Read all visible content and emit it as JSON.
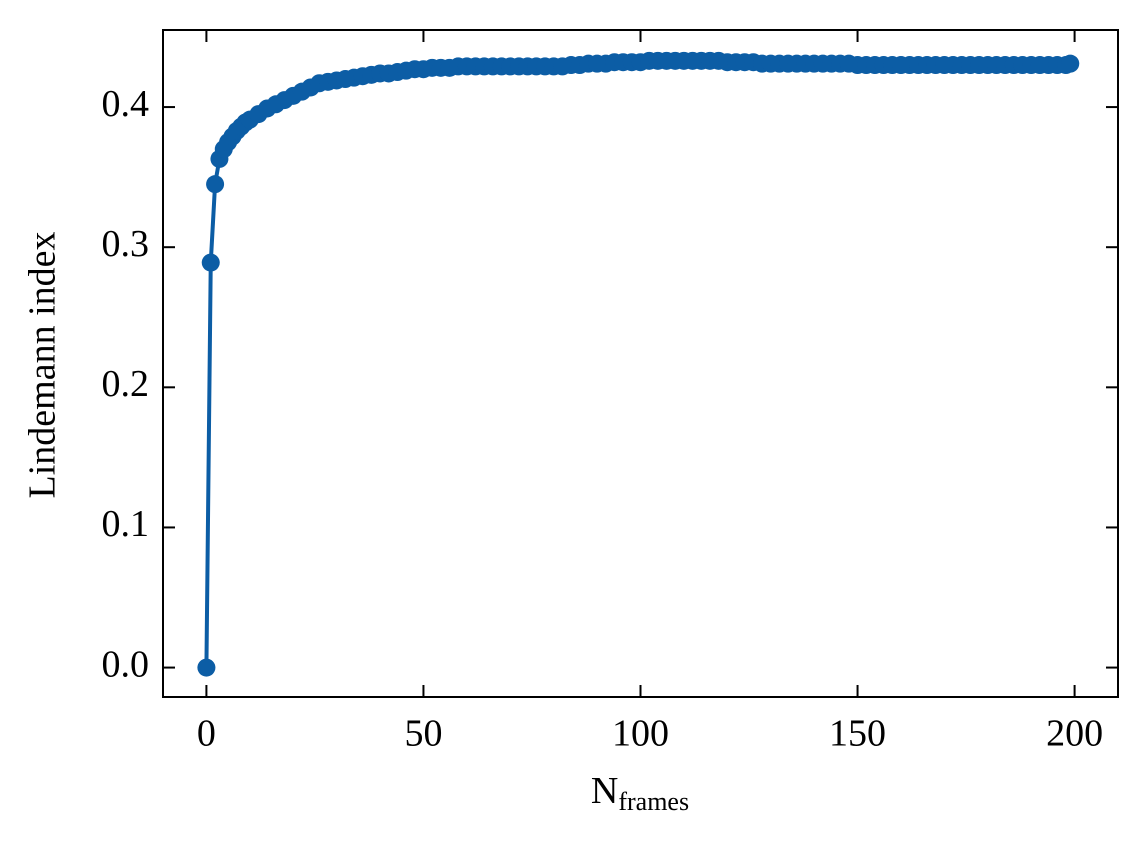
{
  "chart_data": {
    "type": "line",
    "xlabel": "N",
    "xlabel_sub": "frames",
    "ylabel": "Lindemann index",
    "x": [
      0,
      1,
      2,
      3,
      4,
      5,
      6,
      7,
      8,
      9,
      10,
      12,
      14,
      16,
      18,
      20,
      22,
      24,
      26,
      28,
      30,
      32,
      34,
      36,
      38,
      40,
      42,
      44,
      46,
      48,
      50,
      52,
      54,
      56,
      58,
      60,
      62,
      64,
      66,
      68,
      70,
      72,
      74,
      76,
      78,
      80,
      82,
      84,
      86,
      88,
      90,
      92,
      94,
      96,
      98,
      100,
      102,
      104,
      106,
      108,
      110,
      112,
      114,
      116,
      118,
      120,
      122,
      124,
      126,
      128,
      130,
      132,
      134,
      136,
      138,
      140,
      142,
      144,
      146,
      148,
      150,
      152,
      154,
      156,
      158,
      160,
      162,
      164,
      166,
      168,
      170,
      172,
      174,
      176,
      178,
      180,
      182,
      184,
      186,
      188,
      190,
      192,
      194,
      196,
      198,
      199
    ],
    "series": [
      {
        "color": "#0c5da5",
        "values": [
          0,
          0.289,
          0.345,
          0.363,
          0.37,
          0.375,
          0.379,
          0.383,
          0.386,
          0.389,
          0.391,
          0.395,
          0.399,
          0.402,
          0.405,
          0.408,
          0.411,
          0.414,
          0.417,
          0.418,
          0.419,
          0.42,
          0.421,
          0.422,
          0.423,
          0.424,
          0.424,
          0.425,
          0.426,
          0.427,
          0.427,
          0.428,
          0.428,
          0.428,
          0.429,
          0.429,
          0.429,
          0.429,
          0.429,
          0.429,
          0.429,
          0.429,
          0.429,
          0.429,
          0.429,
          0.429,
          0.429,
          0.43,
          0.43,
          0.431,
          0.431,
          0.431,
          0.432,
          0.432,
          0.432,
          0.432,
          0.433,
          0.433,
          0.433,
          0.433,
          0.433,
          0.433,
          0.433,
          0.433,
          0.433,
          0.432,
          0.432,
          0.432,
          0.432,
          0.431,
          0.431,
          0.431,
          0.431,
          0.431,
          0.431,
          0.431,
          0.431,
          0.431,
          0.431,
          0.431,
          0.43,
          0.43,
          0.43,
          0.43,
          0.43,
          0.43,
          0.43,
          0.43,
          0.43,
          0.43,
          0.43,
          0.43,
          0.43,
          0.43,
          0.43,
          0.43,
          0.43,
          0.43,
          0.43,
          0.43,
          0.43,
          0.43,
          0.43,
          0.43,
          0.43,
          0.431
        ]
      }
    ],
    "xlim": [
      -10,
      210
    ],
    "xticks": [
      0,
      50,
      100,
      150,
      200
    ],
    "ylim": [
      -0.021,
      0.455
    ],
    "yticks": [
      {
        "value": 0,
        "label": "0.0"
      },
      0.1,
      0.2,
      0.3,
      0.4
    ],
    "grid": false
  }
}
